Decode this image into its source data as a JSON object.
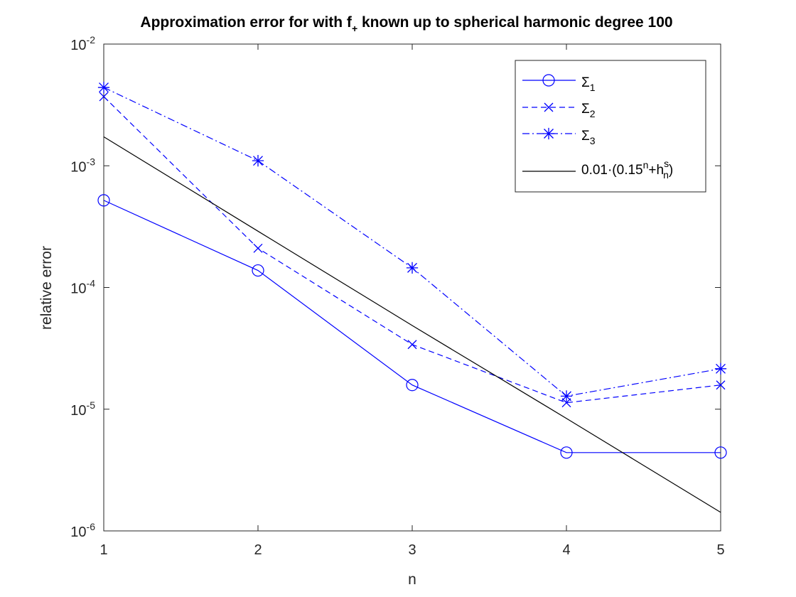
{
  "chart_data": {
    "type": "line",
    "title_parts": {
      "main": "Approximation error for with f",
      "sub": "+",
      "rest": " known up to spherical harmonic degree 100"
    },
    "xlabel": "n",
    "ylabel": "relative error",
    "xlim": [
      1,
      5
    ],
    "ylim": [
      1e-06,
      0.01
    ],
    "yscale": "log",
    "grid": false,
    "legend_position": "top-right",
    "x": [
      1,
      2,
      3,
      4,
      5
    ],
    "x_ticks": [
      "1",
      "2",
      "3",
      "4",
      "5"
    ],
    "y_ticks": [
      {
        "value": 1e-06,
        "base": "10",
        "exp": "-6"
      },
      {
        "value": 1e-05,
        "base": "10",
        "exp": "-5"
      },
      {
        "value": 0.0001,
        "base": "10",
        "exp": "-4"
      },
      {
        "value": 0.001,
        "base": "10",
        "exp": "-3"
      },
      {
        "value": 0.01,
        "base": "10",
        "exp": "-2"
      }
    ],
    "series": [
      {
        "key": "sigma1",
        "label_main": "Σ",
        "label_sub": "1",
        "values": [
          0.00052,
          0.000138,
          1.58e-05,
          4.4e-06,
          4.4e-06
        ],
        "color": "#0000ff",
        "dash": "",
        "marker": "circle"
      },
      {
        "key": "sigma2",
        "label_main": "Σ",
        "label_sub": "2",
        "values": [
          0.0037,
          0.00021,
          3.4e-05,
          1.13e-05,
          1.58e-05
        ],
        "color": "#0000ff",
        "dash": "8,5",
        "marker": "x"
      },
      {
        "key": "sigma3",
        "label_main": "Σ",
        "label_sub": "3",
        "values": [
          0.0044,
          0.0011,
          0.000145,
          1.28e-05,
          2.15e-05
        ],
        "color": "#0000ff",
        "dash": "10,4,2,4",
        "marker": "star"
      },
      {
        "key": "reference",
        "label_parts": {
          "a": "0.01·(0.15",
          "a_sup": "n",
          "b": "+h",
          "b_sup": "s",
          "b_sub": "n",
          "c": ")"
        },
        "values": [
          0.00173,
          0.00029,
          4.87e-05,
          8.4e-06,
          1.42e-06
        ],
        "color": "#000000",
        "dash": "",
        "marker": "none"
      }
    ]
  }
}
